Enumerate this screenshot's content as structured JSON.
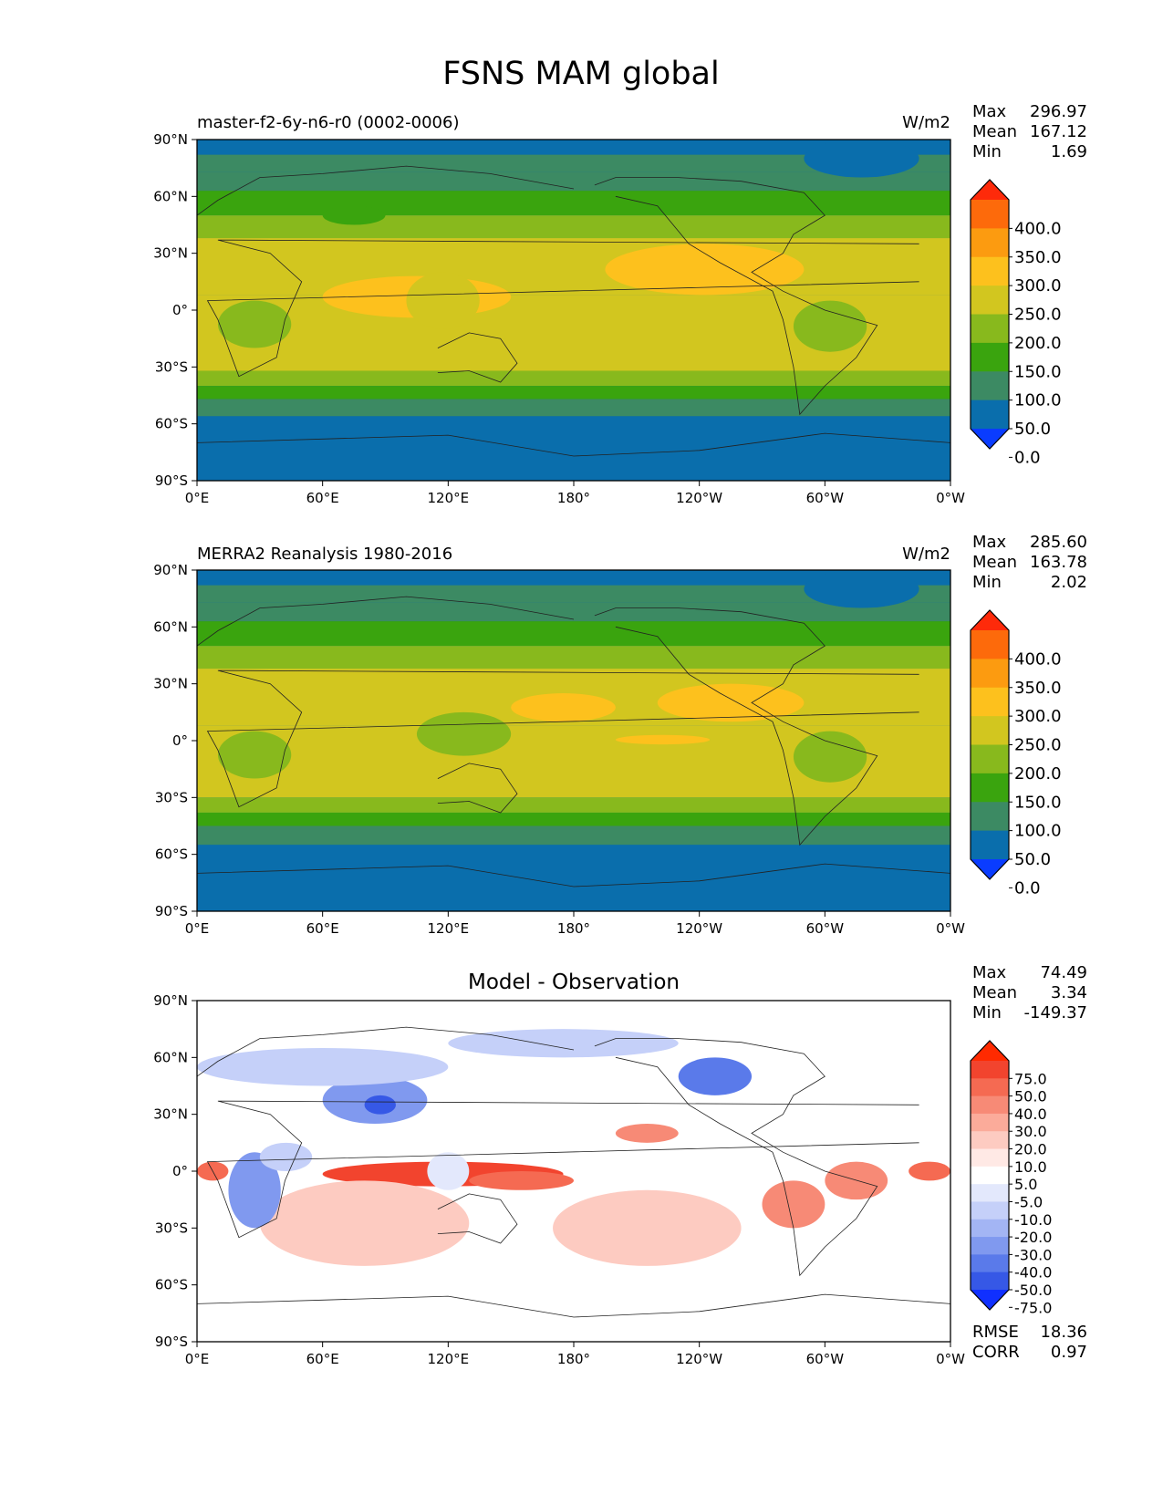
{
  "figure": {
    "title": "FSNS MAM global"
  },
  "panels": [
    {
      "id": "model",
      "left_title": "master-f2-6y-n6-r0 (0002-0006)",
      "center_title": "",
      "units": "W/m2",
      "stats": [
        {
          "label": "Max",
          "value": "296.97"
        },
        {
          "label": "Mean",
          "value": "167.12"
        },
        {
          "label": "Min",
          "value": "1.69"
        }
      ],
      "colorbar": {
        "labels": [
          "400.0",
          "350.0",
          "300.0",
          "250.0",
          "200.0",
          "150.0",
          "100.0",
          "50.0",
          "0.0"
        ],
        "colors": [
          "#fe2a0a",
          "#fd6a0b",
          "#fc9b10",
          "#fdc11d",
          "#d2c61f",
          "#88b91d",
          "#3aa40e",
          "#3c8a63",
          "#0a6eac",
          "#0a3cff"
        ]
      }
    },
    {
      "id": "obs",
      "left_title": "MERRA2 Reanalysis 1980-2016",
      "center_title": "",
      "units": "W/m2",
      "stats": [
        {
          "label": "Max",
          "value": "285.60"
        },
        {
          "label": "Mean",
          "value": "163.78"
        },
        {
          "label": "Min",
          "value": "2.02"
        }
      ],
      "colorbar": {
        "labels": [
          "400.0",
          "350.0",
          "300.0",
          "250.0",
          "200.0",
          "150.0",
          "100.0",
          "50.0",
          "0.0"
        ],
        "colors": [
          "#fe2a0a",
          "#fd6a0b",
          "#fc9b10",
          "#fdc11d",
          "#d2c61f",
          "#88b91d",
          "#3aa40e",
          "#3c8a63",
          "#0a6eac",
          "#0a3cff"
        ]
      }
    },
    {
      "id": "diff",
      "left_title": "",
      "center_title": "Model - Observation",
      "units": "",
      "stats": [
        {
          "label": "Max",
          "value": "74.49"
        },
        {
          "label": "Mean",
          "value": "3.34"
        },
        {
          "label": "Min",
          "value": "-149.37"
        }
      ],
      "colorbar": {
        "labels": [
          "75.0",
          "50.0",
          "40.0",
          "30.0",
          "20.0",
          "10.0",
          "5.0",
          "-5.0",
          "-10.0",
          "-20.0",
          "-30.0",
          "-40.0",
          "-50.0",
          "-75.0"
        ],
        "colors": [
          "#ff2a00",
          "#f2442e",
          "#f56a52",
          "#f78a76",
          "#fbab9a",
          "#fdcbc1",
          "#ffe9e5",
          "#ffffff",
          "#e3e8fc",
          "#c5d0f9",
          "#a3b5f4",
          "#8099ef",
          "#5a7aea",
          "#3658e6",
          "#1030ff"
        ]
      },
      "metrics": [
        {
          "label": "RMSE",
          "value": "18.36"
        },
        {
          "label": "CORR",
          "value": "0.97"
        }
      ]
    }
  ],
  "axes": {
    "x_ticks": [
      "0°E",
      "60°E",
      "120°E",
      "180°",
      "120°W",
      "60°W",
      "0°W"
    ],
    "y_ticks": [
      "90°N",
      "60°N",
      "30°N",
      "0°",
      "30°S",
      "60°S",
      "90°S"
    ]
  },
  "chart_data": [
    {
      "type": "heatmap",
      "title": "master-f2-6y-n6-r0 (0002-0006)",
      "units": "W/m2",
      "xlim": [
        0,
        360
      ],
      "ylim": [
        -90,
        90
      ],
      "levels": [
        0,
        50,
        100,
        150,
        200,
        250,
        300,
        350,
        400
      ],
      "zonal_bands": [
        {
          "lat": [
            82,
            90
          ],
          "value": 25
        },
        {
          "lat": [
            73,
            82
          ],
          "value": 75
        },
        {
          "lat": [
            63,
            73
          ],
          "value": 90
        },
        {
          "lat": [
            50,
            63
          ],
          "value": 125
        },
        {
          "lat": [
            38,
            50
          ],
          "value": 175
        },
        {
          "lat": [
            8,
            38
          ],
          "value": 235
        },
        {
          "lat": [
            -12,
            8
          ],
          "value": 215
        },
        {
          "lat": [
            -32,
            8
          ],
          "value": 215
        },
        {
          "lat": [
            -40,
            -32
          ],
          "value": 165
        },
        {
          "lat": [
            -47,
            -40
          ],
          "value": 125
        },
        {
          "lat": [
            -56,
            -47
          ],
          "value": 85
        },
        {
          "lat": [
            -90,
            -56
          ],
          "value": 25
        }
      ],
      "features": [
        {
          "lon": [
            195,
            290
          ],
          "lat": [
            8,
            35
          ],
          "value": 265
        },
        {
          "lon": [
            60,
            150
          ],
          "lat": [
            -4,
            18
          ],
          "value": 265
        },
        {
          "lon": [
            100,
            135
          ],
          "lat": [
            -10,
            20
          ],
          "value": 230
        },
        {
          "lon": [
            10,
            45
          ],
          "lat": [
            -20,
            5
          ],
          "value": 175
        },
        {
          "lon": [
            285,
            320
          ],
          "lat": [
            -22,
            5
          ],
          "value": 175
        },
        {
          "lon": [
            60,
            90
          ],
          "lat": [
            45,
            55
          ],
          "value": 125
        },
        {
          "lon": [
            290,
            345
          ],
          "lat": [
            70,
            90
          ],
          "value": 25
        }
      ]
    },
    {
      "type": "heatmap",
      "title": "MERRA2 Reanalysis 1980-2016",
      "units": "W/m2",
      "xlim": [
        0,
        360
      ],
      "ylim": [
        -90,
        90
      ],
      "levels": [
        0,
        50,
        100,
        150,
        200,
        250,
        300,
        350,
        400
      ],
      "zonal_bands": [
        {
          "lat": [
            82,
            90
          ],
          "value": 25
        },
        {
          "lat": [
            73,
            82
          ],
          "value": 75
        },
        {
          "lat": [
            63,
            73
          ],
          "value": 90
        },
        {
          "lat": [
            50,
            63
          ],
          "value": 125
        },
        {
          "lat": [
            38,
            50
          ],
          "value": 175
        },
        {
          "lat": [
            8,
            38
          ],
          "value": 220
        },
        {
          "lat": [
            -30,
            8
          ],
          "value": 210
        },
        {
          "lat": [
            -38,
            -30
          ],
          "value": 165
        },
        {
          "lat": [
            -45,
            -38
          ],
          "value": 125
        },
        {
          "lat": [
            -55,
            -45
          ],
          "value": 85
        },
        {
          "lat": [
            -90,
            -55
          ],
          "value": 25
        }
      ],
      "features": [
        {
          "lon": [
            220,
            290
          ],
          "lat": [
            10,
            30
          ],
          "value": 260
        },
        {
          "lon": [
            150,
            200
          ],
          "lat": [
            10,
            25
          ],
          "value": 260
        },
        {
          "lon": [
            200,
            245
          ],
          "lat": [
            -2,
            3
          ],
          "value": 260
        },
        {
          "lon": [
            105,
            150
          ],
          "lat": [
            -8,
            15
          ],
          "value": 180
        },
        {
          "lon": [
            285,
            320
          ],
          "lat": [
            -22,
            5
          ],
          "value": 175
        },
        {
          "lon": [
            10,
            45
          ],
          "lat": [
            -20,
            5
          ],
          "value": 185
        },
        {
          "lon": [
            290,
            345
          ],
          "lat": [
            70,
            90
          ],
          "value": 25
        }
      ]
    },
    {
      "type": "heatmap",
      "title": "Model - Observation",
      "xlim": [
        0,
        360
      ],
      "ylim": [
        -90,
        90
      ],
      "levels": [
        -75,
        -50,
        -40,
        -30,
        -20,
        -10,
        -5,
        5,
        10,
        20,
        30,
        40,
        50,
        75
      ],
      "rmse": 18.36,
      "corr": 0.97,
      "features": [
        {
          "lon": [
            60,
            175
          ],
          "lat": [
            -8,
            5
          ],
          "value": 50
        },
        {
          "lon": [
            130,
            180
          ],
          "lat": [
            -10,
            0
          ],
          "value": 45
        },
        {
          "lon": [
            0,
            15
          ],
          "lat": [
            -5,
            5
          ],
          "value": 45
        },
        {
          "lon": [
            340,
            360
          ],
          "lat": [
            -5,
            5
          ],
          "value": 45
        },
        {
          "lon": [
            270,
            300
          ],
          "lat": [
            -30,
            -5
          ],
          "value": 35
        },
        {
          "lon": [
            300,
            330
          ],
          "lat": [
            -15,
            5
          ],
          "value": 30
        },
        {
          "lon": [
            200,
            230
          ],
          "lat": [
            15,
            25
          ],
          "value": 30
        },
        {
          "lon": [
            30,
            130
          ],
          "lat": [
            -50,
            -5
          ],
          "value": 15
        },
        {
          "lon": [
            170,
            260
          ],
          "lat": [
            -50,
            -10
          ],
          "value": 15
        },
        {
          "lon": [
            60,
            110
          ],
          "lat": [
            25,
            50
          ],
          "value": -40
        },
        {
          "lon": [
            80,
            95
          ],
          "lat": [
            30,
            40
          ],
          "value": -70
        },
        {
          "lon": [
            230,
            265
          ],
          "lat": [
            40,
            60
          ],
          "value": -45
        },
        {
          "lon": [
            0,
            120
          ],
          "lat": [
            45,
            65
          ],
          "value": -20
        },
        {
          "lon": [
            120,
            230
          ],
          "lat": [
            60,
            75
          ],
          "value": -20
        },
        {
          "lon": [
            15,
            40
          ],
          "lat": [
            -30,
            10
          ],
          "value": -35
        },
        {
          "lon": [
            30,
            55
          ],
          "lat": [
            0,
            15
          ],
          "value": -20
        },
        {
          "lon": [
            110,
            130
          ],
          "lat": [
            -10,
            10
          ],
          "value": -10
        }
      ]
    }
  ]
}
